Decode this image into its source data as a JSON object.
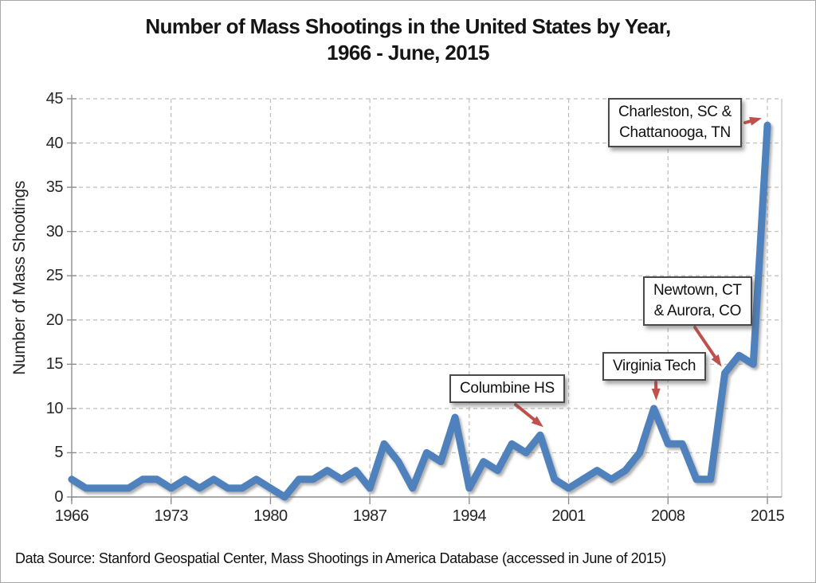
{
  "title": {
    "line1": "Number of Mass Shootings in the United States by Year,",
    "line2": "1966 - June, 2015"
  },
  "source": "Data Source: Stanford Geospatial Center, Mass Shootings in America Database (accessed in June of 2015)",
  "chart_data": {
    "type": "line",
    "title": "Number of Mass Shootings in the United States by Year, 1966 - June, 2015",
    "xlabel": "",
    "ylabel": "Number of Mass Shootings",
    "ylim": [
      0,
      45
    ],
    "xlim": [
      1966,
      2015
    ],
    "grid": true,
    "line_color": "#4F81BD",
    "annotation_color": "#C0504D",
    "gridline_color": "#BDBDBD",
    "axis_color": "#8E8E8E",
    "xticks": [
      1966,
      1973,
      1980,
      1987,
      1994,
      2001,
      2008,
      2015
    ],
    "yticks": [
      0,
      5,
      10,
      15,
      20,
      25,
      30,
      35,
      40,
      45
    ],
    "x": [
      1966,
      1967,
      1968,
      1969,
      1970,
      1971,
      1972,
      1973,
      1974,
      1975,
      1976,
      1977,
      1978,
      1979,
      1980,
      1981,
      1982,
      1983,
      1984,
      1985,
      1986,
      1987,
      1988,
      1989,
      1990,
      1991,
      1992,
      1993,
      1994,
      1995,
      1996,
      1997,
      1998,
      1999,
      2000,
      2001,
      2002,
      2003,
      2004,
      2005,
      2006,
      2007,
      2008,
      2009,
      2010,
      2011,
      2012,
      2013,
      2014,
      2015
    ],
    "values": [
      2,
      1,
      1,
      1,
      1,
      2,
      2,
      1,
      2,
      1,
      2,
      1,
      1,
      2,
      1,
      0,
      2,
      2,
      3,
      2,
      3,
      1,
      6,
      4,
      1,
      5,
      4,
      9,
      1,
      4,
      3,
      6,
      5,
      7,
      2,
      1,
      2,
      3,
      2,
      3,
      5,
      10,
      6,
      6,
      2,
      2,
      14,
      16,
      15,
      42
    ],
    "annotations": [
      {
        "id": "charleston",
        "line1": "Charleston, SC &",
        "line2": "Chattanooga, TN",
        "target_year": 2015,
        "target_value": 42
      },
      {
        "id": "newtown",
        "line1": "Newtown, CT",
        "line2": "& Aurora, CO",
        "target_year": 2012,
        "target_value": 14
      },
      {
        "id": "virginia_tech",
        "line1": "Virginia Tech",
        "line2": "",
        "target_year": 2007,
        "target_value": 10
      },
      {
        "id": "columbine",
        "line1": "Columbine HS",
        "line2": "",
        "target_year": 1999,
        "target_value": 7
      }
    ]
  }
}
